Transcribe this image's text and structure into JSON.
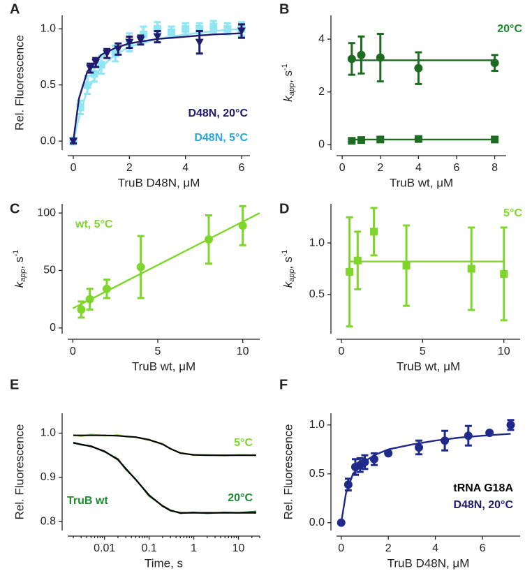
{
  "chart_data": [
    {
      "type": "scatter",
      "panel": "A",
      "xlabel": "TruB D48N, μM",
      "ylabel": "Rel. Fluorescence",
      "xlim": [
        -0.2,
        6.3
      ],
      "xticks": [
        0,
        2,
        4,
        6
      ],
      "ylim": [
        -0.08,
        1.12
      ],
      "yticks": [
        {
          "value": 0,
          "label": "0.0"
        },
        {
          "value": 0.5,
          "label": "0.5"
        },
        {
          "value": 1,
          "label": "1.0"
        }
      ],
      "series": [
        {
          "color": "#8fe6f2",
          "marker": "square",
          "x": [
            0,
            0.25,
            0.5,
            0.75,
            1,
            1.5,
            2,
            2.5,
            3,
            3.5,
            4,
            4.5,
            5,
            5.5,
            6
          ],
          "values": [
            0,
            0.3,
            0.5,
            0.6,
            0.68,
            0.78,
            0.88,
            0.95,
            1.0,
            0.97,
            1.0,
            1.0,
            1.02,
            1.0,
            1.0
          ],
          "errors": [
            0.03,
            0.06,
            0.08,
            0.07,
            0.08,
            0.07,
            0.08,
            0.07,
            0.06,
            0.05,
            0.05,
            0.05,
            0.05,
            0.05,
            0.06
          ]
        },
        {
          "color": "#8fe6f2",
          "marker": "line",
          "x": [
            0,
            0.25,
            0.5,
            1,
            1.5,
            2,
            3,
            4,
            5,
            6
          ],
          "values": [
            0,
            0.26,
            0.45,
            0.66,
            0.77,
            0.84,
            0.91,
            0.95,
            0.98,
            1.0
          ]
        },
        {
          "color": "#1f1a6e",
          "marker": "triangle",
          "x": [
            0,
            0.6,
            0.8,
            1.2,
            1.6,
            2,
            2.4,
            3,
            4.5,
            6
          ],
          "values": [
            0,
            0.65,
            0.7,
            0.78,
            0.82,
            0.88,
            0.9,
            0.93,
            0.88,
            0.98
          ],
          "errors": [
            0.02,
            0.04,
            0.04,
            0.04,
            0.05,
            0.05,
            0.04,
            0.05,
            0.1,
            0.06
          ]
        },
        {
          "color": "#1f1a6e",
          "marker": "line",
          "x": [
            0,
            0.2,
            0.5,
            1,
            1.5,
            2,
            3,
            4,
            5,
            6
          ],
          "values": [
            0,
            0.38,
            0.62,
            0.77,
            0.83,
            0.87,
            0.91,
            0.93,
            0.95,
            0.96
          ]
        }
      ],
      "annotations": [
        {
          "text": "D48N, 20°C",
          "color": "#1f1a6e"
        },
        {
          "text": "D48N, 5°C",
          "color": "#2aa6d8"
        }
      ]
    },
    {
      "type": "scatter",
      "panel": "B",
      "xlabel": "TruB wt, μM",
      "ylabel": {
        "symbol": "k",
        "sub": "app",
        "unit": ", s",
        "sup": "-1"
      },
      "xlim": [
        -0.3,
        8.6
      ],
      "xticks": [
        0,
        2,
        4,
        6,
        8
      ],
      "ylim": [
        -0.2,
        4.9
      ],
      "yticks": [
        0,
        2,
        4
      ],
      "series": [
        {
          "color": "#1e6b22",
          "marker": "circle",
          "x": [
            0.5,
            1,
            2,
            4,
            8
          ],
          "values": [
            3.25,
            3.4,
            3.3,
            2.9,
            3.1
          ],
          "errors": [
            0.6,
            0.7,
            0.9,
            0.6,
            0.3
          ]
        },
        {
          "color": "#1e6b22",
          "marker": "line",
          "x": [
            0.5,
            8
          ],
          "values": [
            3.2,
            3.2
          ]
        },
        {
          "color": "#1e6b22",
          "marker": "square",
          "x": [
            0.5,
            1,
            2,
            4,
            8
          ],
          "values": [
            0.15,
            0.18,
            0.2,
            0.22,
            0.2
          ],
          "errors": [
            0.05,
            0.05,
            0.05,
            0.05,
            0.05
          ]
        },
        {
          "color": "#1e6b22",
          "marker": "line",
          "x": [
            0.5,
            8
          ],
          "values": [
            0.2,
            0.2
          ]
        }
      ],
      "annotations": [
        {
          "text": "20°C",
          "color": "#1e8a2e"
        }
      ]
    },
    {
      "type": "scatter",
      "panel": "C",
      "xlabel": "TruB wt, μM",
      "ylabel": {
        "symbol": "k",
        "sub": "app",
        "unit": ", s",
        "sup": "-1"
      },
      "xlim": [
        -0.3,
        11
      ],
      "xticks": [
        0,
        5,
        10
      ],
      "ylim": [
        -5,
        108
      ],
      "yticks": [
        0,
        50,
        100
      ],
      "series": [
        {
          "color": "#7fd62a",
          "marker": "circle",
          "x": [
            0.5,
            1,
            2,
            4,
            8,
            10
          ],
          "values": [
            16,
            25,
            34,
            53,
            77,
            89
          ],
          "errors": [
            7,
            9,
            8,
            27,
            21,
            17
          ]
        },
        {
          "color": "#7fd62a",
          "marker": "line",
          "x": [
            0,
            11
          ],
          "values": [
            17,
            100
          ]
        }
      ],
      "annotations": [
        {
          "text": "wt, 5°C",
          "color": "#7fd62a"
        }
      ]
    },
    {
      "type": "scatter",
      "panel": "D",
      "xlabel": "TruB wt, μM",
      "ylabel": {
        "symbol": "k",
        "sub": "app",
        "unit": ", s",
        "sup": "-1"
      },
      "xlim": [
        -0.3,
        11
      ],
      "xticks": [
        0,
        5,
        10
      ],
      "ylim": [
        0.12,
        1.38
      ],
      "yticks": [
        0.5,
        {
          "value": 1,
          "label": "1.0"
        }
      ],
      "series": [
        {
          "color": "#7fd62a",
          "marker": "square",
          "x": [
            0.5,
            1,
            2,
            4,
            8,
            10
          ],
          "values": [
            0.72,
            0.83,
            1.11,
            0.78,
            0.75,
            0.7
          ],
          "errors": [
            0.53,
            0.28,
            0.23,
            0.39,
            0.4,
            0.45
          ]
        },
        {
          "color": "#7fd62a",
          "marker": "line",
          "x": [
            0.5,
            10
          ],
          "values": [
            0.82,
            0.82
          ]
        }
      ],
      "annotations": [
        {
          "text": "5°C",
          "color": "#7fd62a"
        }
      ]
    },
    {
      "type": "line",
      "panel": "E",
      "xlabel": "Time, s",
      "ylabel": "Rel. Fluorescence",
      "xscale": "log",
      "xlim": [
        0.0015,
        30
      ],
      "xticks": [
        0.01,
        0.1,
        1,
        10
      ],
      "ylim": [
        0.78,
        1.045
      ],
      "yticks": [
        0.8,
        0.9,
        {
          "value": 1,
          "label": "1.0"
        }
      ],
      "series": [
        {
          "color": "#8cdc3c",
          "marker": "line",
          "x": [
            0.002,
            0.003,
            0.005,
            0.01,
            0.02,
            0.03,
            0.05,
            0.1,
            0.2,
            0.3,
            0.5,
            1,
            2,
            5,
            10,
            25
          ],
          "values": [
            0.996,
            0.993,
            0.997,
            0.994,
            0.996,
            0.992,
            0.991,
            0.984,
            0.976,
            0.964,
            0.956,
            0.95,
            0.951,
            0.949,
            0.951,
            0.95
          ]
        },
        {
          "color": "#1e7a2a",
          "marker": "line",
          "x": [
            0.002,
            0.003,
            0.005,
            0.01,
            0.02,
            0.03,
            0.05,
            0.1,
            0.2,
            0.3,
            0.5,
            1,
            2,
            5,
            10,
            25
          ],
          "values": [
            0.979,
            0.974,
            0.971,
            0.958,
            0.942,
            0.918,
            0.896,
            0.858,
            0.836,
            0.826,
            0.819,
            0.821,
            0.819,
            0.821,
            0.82,
            0.823
          ]
        },
        {
          "color": "#000000",
          "marker": "line",
          "x": [
            0.002,
            0.005,
            0.01,
            0.02,
            0.05,
            0.1,
            0.2,
            0.3,
            0.5,
            1,
            2,
            5,
            25
          ],
          "values": [
            0.995,
            0.995,
            0.995,
            0.994,
            0.991,
            0.985,
            0.975,
            0.965,
            0.955,
            0.951,
            0.95,
            0.95,
            0.95
          ]
        },
        {
          "color": "#000000",
          "marker": "line",
          "x": [
            0.002,
            0.005,
            0.01,
            0.02,
            0.03,
            0.05,
            0.1,
            0.2,
            0.3,
            0.5,
            1,
            2,
            25
          ],
          "values": [
            0.978,
            0.97,
            0.959,
            0.94,
            0.92,
            0.895,
            0.86,
            0.835,
            0.825,
            0.82,
            0.82,
            0.82,
            0.82
          ]
        }
      ],
      "annotations": [
        {
          "text": "5°C",
          "color": "#7fd62a"
        },
        {
          "text": "20°C",
          "color": "#1e8a2e"
        },
        {
          "text": "TruB wt",
          "color": "#1e8a2e"
        }
      ]
    },
    {
      "type": "scatter",
      "panel": "F",
      "xlabel": "TruB D48N, μM",
      "ylabel": "Rel. Fluorescence",
      "xlim": [
        -0.2,
        7.6
      ],
      "xticks": [
        0,
        2,
        4,
        6
      ],
      "ylim": [
        -0.08,
        1.12
      ],
      "yticks": [
        {
          "value": 0,
          "label": "0.0"
        },
        {
          "value": 0.5,
          "label": "0.5"
        },
        {
          "value": 1,
          "label": "1.0"
        }
      ],
      "series": [
        {
          "color": "#1f2a8a",
          "marker": "circle",
          "x": [
            0,
            0.3,
            0.6,
            0.8,
            1,
            1.4,
            2,
            3.3,
            4.4,
            5.4,
            6.3,
            7.2
          ],
          "values": [
            0,
            0.39,
            0.57,
            0.59,
            0.62,
            0.65,
            0.71,
            0.77,
            0.84,
            0.89,
            0.92,
            1.0
          ],
          "errors": [
            0,
            0.06,
            0.08,
            0.07,
            0.07,
            0.06,
            0,
            0.07,
            0.1,
            0.1,
            0,
            0.05
          ]
        },
        {
          "color": "#1f2a8a",
          "marker": "line",
          "x": [
            0,
            0.2,
            0.5,
            1,
            1.5,
            2,
            3,
            4,
            5,
            6,
            7.2
          ],
          "values": [
            0,
            0.3,
            0.5,
            0.63,
            0.7,
            0.75,
            0.8,
            0.84,
            0.87,
            0.89,
            0.91
          ]
        }
      ],
      "annotations": [
        {
          "text": "tRNA G18A",
          "color": "#000000"
        },
        {
          "text": "D48N, 20°C",
          "color": "#1f1a6e"
        }
      ]
    }
  ]
}
